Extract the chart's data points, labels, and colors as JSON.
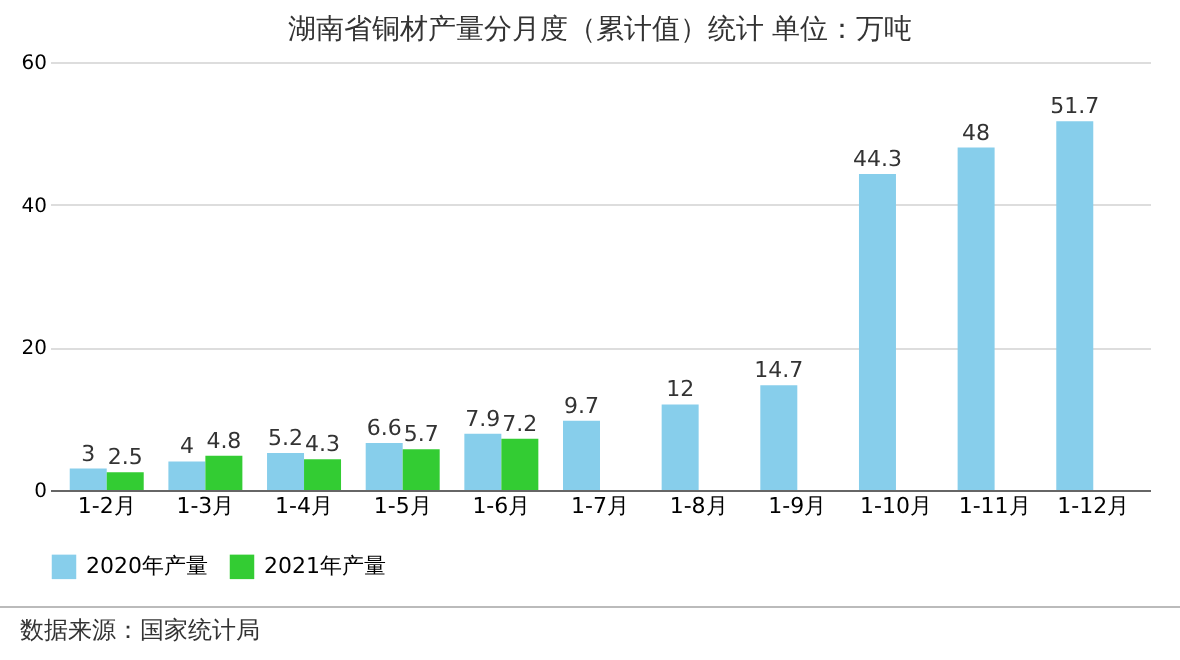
{
  "chart_data": {
    "type": "bar",
    "title": "湖南省铜材产量分月度（累计值）统计 单位：万吨",
    "categories": [
      "1-2月",
      "1-3月",
      "1-4月",
      "1-5月",
      "1-6月",
      "1-7月",
      "1-8月",
      "1-9月",
      "1-10月",
      "1-11月",
      "1-12月"
    ],
    "series": [
      {
        "name": "2020年产量",
        "color": "#87ceeb",
        "values": [
          3,
          4,
          5.2,
          6.6,
          7.9,
          9.7,
          12,
          14.7,
          44.3,
          48,
          51.7
        ]
      },
      {
        "name": "2021年产量",
        "color": "#33cc33",
        "values": [
          2.5,
          4.8,
          4.3,
          5.7,
          7.2,
          null,
          null,
          null,
          null,
          null,
          null
        ]
      }
    ],
    "ylim": [
      0,
      60
    ],
    "yticks": [
      0,
      20,
      40,
      60
    ],
    "grid": "y",
    "legend": "bottom",
    "data_labels": true,
    "annotations": [
      "数据来源：国家统计局"
    ]
  }
}
